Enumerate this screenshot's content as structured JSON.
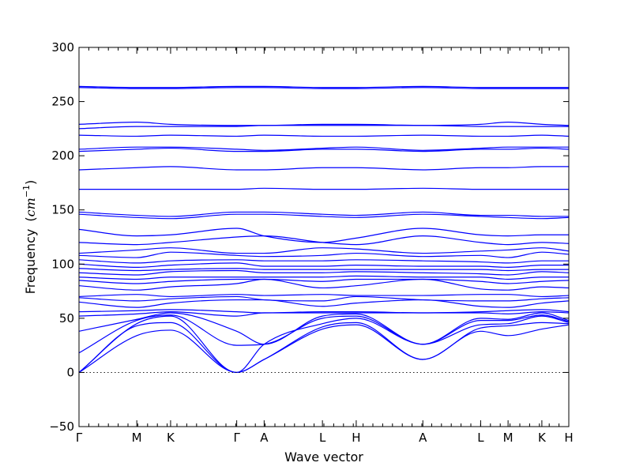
{
  "chart_data": {
    "type": "line",
    "title": "",
    "xlabel": "Wave vector",
    "ylabel": "Frequency",
    "ylabel_unit": "cm",
    "ylabel_unit_exp": "−1",
    "ylim": [
      -50,
      300
    ],
    "xlim": [
      0,
      1
    ],
    "yticks": [
      -50,
      0,
      50,
      100,
      150,
      200,
      250,
      300
    ],
    "ytick_labels": [
      "−50",
      "0",
      "50",
      "100",
      "150",
      "200",
      "250",
      "300"
    ],
    "zero_line": true,
    "grid": false,
    "legend": "none",
    "band_color": "#0000ff",
    "points": [
      {
        "label": "Γ",
        "x": 0.0
      },
      {
        "label": "M",
        "x": 0.118
      },
      {
        "label": "K",
        "x": 0.187
      },
      {
        "label": "Γ",
        "x": 0.322
      },
      {
        "label": "A",
        "x": 0.378
      },
      {
        "label": "L",
        "x": 0.497
      },
      {
        "label": "H",
        "x": 0.566
      },
      {
        "label": "A",
        "x": 0.702
      },
      {
        "label": "L",
        "x": 0.82
      },
      {
        "label": "M",
        "x": 0.876
      },
      {
        "label": "K",
        "x": 0.945
      },
      {
        "label": "H",
        "x": 1.0
      }
    ],
    "minor_tick_step": 0.02,
    "series": [
      {
        "x": [
          0,
          0.118,
          0.187,
          0.322,
          0.378,
          0.497,
          0.566,
          0.702,
          0.82,
          0.876,
          0.945,
          1.0
        ],
        "y": [
          0,
          34,
          39,
          0,
          12,
          40,
          44,
          12,
          38,
          34,
          40,
          44
        ]
      },
      {
        "x": [
          0,
          0.118,
          0.187,
          0.322,
          0.378,
          0.497,
          0.566,
          0.702,
          0.82,
          0.876,
          0.945,
          1.0
        ],
        "y": [
          0,
          43,
          46,
          0,
          12,
          42,
          46,
          12,
          41,
          43,
          46,
          45
        ]
      },
      {
        "x": [
          0,
          0.118,
          0.187,
          0.322,
          0.378,
          0.497,
          0.566,
          0.702,
          0.82,
          0.876,
          0.945,
          1.0
        ],
        "y": [
          0,
          45,
          52,
          0,
          26,
          45,
          50,
          26,
          44,
          45,
          52,
          46
        ]
      },
      {
        "x": [
          0,
          0.118,
          0.187,
          0.322,
          0.378,
          0.497,
          0.566,
          0.702,
          0.82,
          0.876,
          0.945,
          1.0
        ],
        "y": [
          18,
          48,
          53,
          25,
          26,
          50,
          52,
          26,
          48,
          48,
          53,
          47
        ]
      },
      {
        "x": [
          0,
          0.118,
          0.187,
          0.322,
          0.378,
          0.497,
          0.566,
          0.702,
          0.82,
          0.876,
          0.945,
          1.0
        ],
        "y": [
          38,
          49,
          55,
          38,
          26,
          52,
          54,
          26,
          50,
          49,
          55,
          48
        ]
      },
      {
        "x": [
          0,
          0.118,
          0.187,
          0.322,
          0.378,
          0.497,
          0.566,
          0.702,
          0.82,
          0.876,
          0.945,
          1.0
        ],
        "y": [
          52,
          54,
          56,
          52,
          55,
          55,
          55,
          55,
          55,
          54,
          56,
          55
        ]
      },
      {
        "x": [
          0,
          0.118,
          0.187,
          0.322,
          0.378,
          0.497,
          0.566,
          0.702,
          0.82,
          0.876,
          0.945,
          1.0
        ],
        "y": [
          56,
          57,
          58,
          56,
          55,
          56,
          56,
          55,
          56,
          57,
          58,
          56
        ]
      },
      {
        "x": [
          0,
          0.118,
          0.187,
          0.322,
          0.378,
          0.497,
          0.566,
          0.702,
          0.82,
          0.876,
          0.945,
          1.0
        ],
        "y": [
          65,
          60,
          64,
          67,
          67,
          61,
          64,
          67,
          61,
          60,
          64,
          66
        ]
      },
      {
        "x": [
          0,
          0.118,
          0.187,
          0.322,
          0.378,
          0.497,
          0.566,
          0.702,
          0.82,
          0.876,
          0.945,
          1.0
        ],
        "y": [
          69,
          66,
          68,
          70,
          67,
          66,
          70,
          67,
          66,
          66,
          68,
          69
        ]
      },
      {
        "x": [
          0,
          0.118,
          0.187,
          0.322,
          0.378,
          0.497,
          0.566,
          0.702,
          0.82,
          0.876,
          0.945,
          1.0
        ],
        "y": [
          70,
          72,
          70,
          72,
          71,
          72,
          71,
          71,
          72,
          72,
          70,
          71
        ]
      },
      {
        "x": [
          0,
          0.118,
          0.187,
          0.322,
          0.378,
          0.497,
          0.566,
          0.702,
          0.82,
          0.876,
          0.945,
          1.0
        ],
        "y": [
          80,
          76,
          79,
          82,
          86,
          78,
          80,
          86,
          77,
          76,
          79,
          78
        ]
      },
      {
        "x": [
          0,
          0.118,
          0.187,
          0.322,
          0.378,
          0.497,
          0.566,
          0.702,
          0.82,
          0.876,
          0.945,
          1.0
        ],
        "y": [
          85,
          82,
          84,
          86,
          86,
          84,
          86,
          86,
          84,
          82,
          84,
          85
        ]
      },
      {
        "x": [
          0,
          0.118,
          0.187,
          0.322,
          0.378,
          0.497,
          0.566,
          0.702,
          0.82,
          0.876,
          0.945,
          1.0
        ],
        "y": [
          88,
          86,
          88,
          88,
          88,
          88,
          89,
          88,
          88,
          86,
          88,
          88
        ]
      },
      {
        "x": [
          0,
          0.118,
          0.187,
          0.322,
          0.378,
          0.497,
          0.566,
          0.702,
          0.82,
          0.876,
          0.945,
          1.0
        ],
        "y": [
          92,
          90,
          93,
          94,
          92,
          92,
          93,
          92,
          91,
          90,
          93,
          92
        ]
      },
      {
        "x": [
          0,
          0.118,
          0.187,
          0.322,
          0.378,
          0.497,
          0.566,
          0.702,
          0.82,
          0.876,
          0.945,
          1.0
        ],
        "y": [
          96,
          94,
          95,
          96,
          95,
          95,
          95,
          95,
          95,
          94,
          95,
          95
        ]
      },
      {
        "x": [
          0,
          0.118,
          0.187,
          0.322,
          0.378,
          0.497,
          0.566,
          0.702,
          0.82,
          0.876,
          0.945,
          1.0
        ],
        "y": [
          100,
          97,
          99,
          101,
          98,
          98,
          99,
          98,
          98,
          97,
          99,
          99
        ]
      },
      {
        "x": [
          0,
          0.118,
          0.187,
          0.322,
          0.378,
          0.497,
          0.566,
          0.702,
          0.82,
          0.876,
          0.945,
          1.0
        ],
        "y": [
          104,
          101,
          103,
          104,
          103,
          103,
          104,
          103,
          102,
          101,
          103,
          103
        ]
      },
      {
        "x": [
          0,
          0.118,
          0.187,
          0.322,
          0.378,
          0.497,
          0.566,
          0.702,
          0.82,
          0.876,
          0.945,
          1.0
        ],
        "y": [
          108,
          106,
          111,
          108,
          107,
          108,
          110,
          107,
          108,
          106,
          111,
          109
        ]
      },
      {
        "x": [
          0,
          0.118,
          0.187,
          0.322,
          0.378,
          0.497,
          0.566,
          0.702,
          0.82,
          0.876,
          0.945,
          1.0
        ],
        "y": [
          110,
          113,
          115,
          110,
          110,
          115,
          114,
          110,
          112,
          113,
          115,
          112
        ]
      },
      {
        "x": [
          0,
          0.118,
          0.187,
          0.322,
          0.378,
          0.497,
          0.566,
          0.702,
          0.82,
          0.876,
          0.945,
          1.0
        ],
        "y": [
          120,
          118,
          120,
          125,
          126,
          120,
          118,
          126,
          120,
          118,
          120,
          119
        ]
      },
      {
        "x": [
          0,
          0.118,
          0.187,
          0.322,
          0.378,
          0.497,
          0.566,
          0.702,
          0.82,
          0.876,
          0.945,
          1.0
        ],
        "y": [
          132,
          126,
          127,
          133,
          126,
          120,
          124,
          133,
          127,
          126,
          127,
          127
        ]
      },
      {
        "x": [
          0,
          0.118,
          0.187,
          0.322,
          0.378,
          0.497,
          0.566,
          0.702,
          0.82,
          0.876,
          0.945,
          1.0
        ],
        "y": [
          146,
          143,
          142,
          146,
          146,
          144,
          143,
          146,
          144,
          143,
          142,
          143
        ]
      },
      {
        "x": [
          0,
          0.118,
          0.187,
          0.322,
          0.378,
          0.497,
          0.566,
          0.702,
          0.82,
          0.876,
          0.945,
          1.0
        ],
        "y": [
          148,
          145,
          144,
          148,
          148,
          146,
          145,
          148,
          145,
          145,
          144,
          144
        ]
      },
      {
        "x": [
          0,
          0.118,
          0.187,
          0.322,
          0.378,
          0.497,
          0.566,
          0.702,
          0.82,
          0.876,
          0.945,
          1.0
        ],
        "y": [
          169,
          169,
          169,
          169,
          170,
          169,
          169,
          170,
          169,
          169,
          169,
          169
        ]
      },
      {
        "x": [
          0,
          0.118,
          0.187,
          0.322,
          0.378,
          0.497,
          0.566,
          0.702,
          0.82,
          0.876,
          0.945,
          1.0
        ],
        "y": [
          187,
          189,
          190,
          187,
          187,
          189,
          189,
          187,
          189,
          189,
          190,
          190
        ]
      },
      {
        "x": [
          0,
          0.118,
          0.187,
          0.322,
          0.378,
          0.497,
          0.566,
          0.702,
          0.82,
          0.876,
          0.945,
          1.0
        ],
        "y": [
          204,
          206,
          207,
          204,
          204,
          206,
          206,
          204,
          206,
          206,
          207,
          206
        ]
      },
      {
        "x": [
          0,
          0.118,
          0.187,
          0.322,
          0.378,
          0.497,
          0.566,
          0.702,
          0.82,
          0.876,
          0.945,
          1.0
        ],
        "y": [
          206,
          208,
          208,
          206,
          205,
          207,
          208,
          205,
          207,
          208,
          208,
          208
        ]
      },
      {
        "x": [
          0,
          0.118,
          0.187,
          0.322,
          0.378,
          0.497,
          0.566,
          0.702,
          0.82,
          0.876,
          0.945,
          1.0
        ],
        "y": [
          219,
          218,
          219,
          218,
          219,
          218,
          218,
          219,
          218,
          218,
          219,
          218
        ]
      },
      {
        "x": [
          0,
          0.118,
          0.187,
          0.322,
          0.378,
          0.497,
          0.566,
          0.702,
          0.82,
          0.876,
          0.945,
          1.0
        ],
        "y": [
          225,
          227,
          227,
          227,
          228,
          228,
          228,
          228,
          227,
          227,
          227,
          227
        ]
      },
      {
        "x": [
          0,
          0.118,
          0.187,
          0.322,
          0.378,
          0.497,
          0.566,
          0.702,
          0.82,
          0.876,
          0.945,
          1.0
        ],
        "y": [
          229,
          231,
          229,
          228,
          228,
          229,
          229,
          228,
          229,
          231,
          229,
          228
        ]
      },
      {
        "x": [
          0,
          0.118,
          0.187,
          0.322,
          0.378,
          0.497,
          0.566,
          0.702,
          0.82,
          0.876,
          0.945,
          1.0
        ],
        "y": [
          263,
          262,
          262,
          263,
          263,
          262,
          262,
          263,
          262,
          262,
          262,
          262
        ]
      },
      {
        "x": [
          0,
          0.118,
          0.187,
          0.322,
          0.378,
          0.497,
          0.566,
          0.702,
          0.82,
          0.876,
          0.945,
          1.0
        ],
        "y": [
          264,
          263,
          263,
          264,
          264,
          263,
          263,
          264,
          263,
          263,
          263,
          263
        ]
      }
    ]
  }
}
